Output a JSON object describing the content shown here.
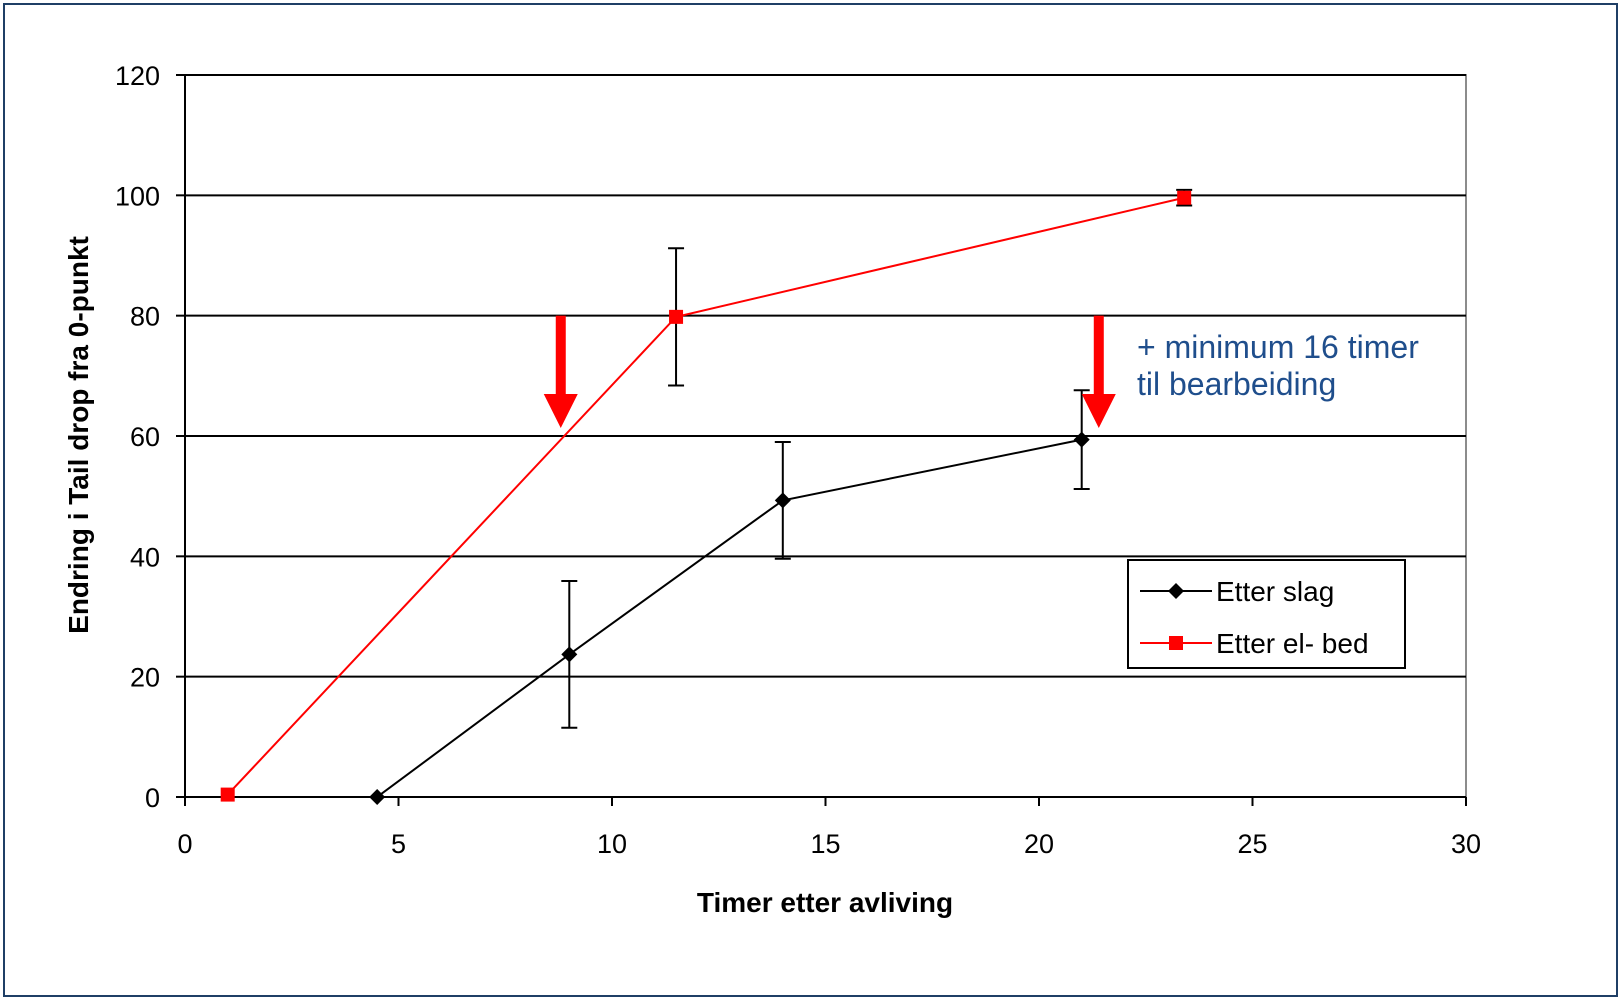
{
  "chart_data": {
    "type": "line",
    "title": "",
    "xlabel": "Timer etter avliving",
    "ylabel": "Endring i Tail drop fra 0-punkt",
    "xlim": [
      0,
      30
    ],
    "ylim": [
      0,
      120
    ],
    "xticks": [
      0,
      5,
      10,
      15,
      20,
      25,
      30
    ],
    "yticks": [
      0,
      20,
      40,
      60,
      80,
      100,
      120
    ],
    "grid": "horizontal",
    "legend_position": "right",
    "series": [
      {
        "name": "Etter slag",
        "color": "#000000",
        "marker": "diamond",
        "x": [
          4.5,
          9,
          14,
          21
        ],
        "y": [
          0,
          23.7,
          49.3,
          59.4
        ],
        "error": [
          0,
          12.2,
          9.7,
          8.2
        ]
      },
      {
        "name": "Etter el- bed",
        "color": "#ff0000",
        "marker": "square",
        "x": [
          1,
          11.5,
          23.4
        ],
        "y": [
          0.4,
          79.8,
          99.6
        ],
        "error": [
          0,
          11.4,
          1.3
        ]
      }
    ],
    "annotations": [
      {
        "type": "arrow",
        "color": "#ff0000",
        "x": 8.8,
        "y_from": 80,
        "y_to": 61
      },
      {
        "type": "arrow",
        "color": "#ff0000",
        "x": 21.4,
        "y_from": 80,
        "y_to": 61
      },
      {
        "type": "text",
        "color": "#1f4e8c",
        "lines": [
          "+ minimum 16 timer",
          "til bearbeiding"
        ]
      }
    ]
  }
}
